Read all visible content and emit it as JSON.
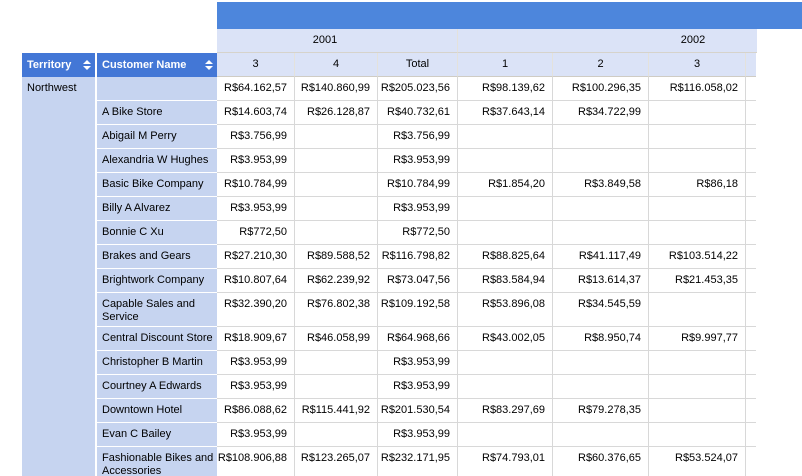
{
  "colors": {
    "banner_blue": "#4D86DC",
    "sort_header_blue": "#4377D6",
    "group_header_bg": "#DBE3F7",
    "row_header_bg": "#C6D4F0",
    "gridline": "#D8D8D8",
    "header_text": "#FFFFFF",
    "body_text": "#000000"
  },
  "column_headers": {
    "territory": "Territory",
    "customer": "Customer Name",
    "years": [
      {
        "label": "2001"
      },
      {
        "label": "2002"
      }
    ],
    "months": [
      "3",
      "4",
      "Total",
      "1",
      "2",
      "3"
    ]
  },
  "territory_value": "Northwest",
  "rows": [
    {
      "name": "",
      "values": [
        "R$64.162,57",
        "R$140.860,99",
        "R$205.023,56",
        "R$98.139,62",
        "R$100.296,35",
        "R$116.058,02"
      ]
    },
    {
      "name": "A Bike Store",
      "values": [
        "R$14.603,74",
        "R$26.128,87",
        "R$40.732,61",
        "R$37.643,14",
        "R$34.722,99",
        ""
      ]
    },
    {
      "name": "Abigail M Perry",
      "values": [
        "R$3.756,99",
        "",
        "R$3.756,99",
        "",
        "",
        ""
      ]
    },
    {
      "name": "Alexandria W Hughes",
      "values": [
        "R$3.953,99",
        "",
        "R$3.953,99",
        "",
        "",
        ""
      ]
    },
    {
      "name": "Basic Bike Company",
      "values": [
        "R$10.784,99",
        "",
        "R$10.784,99",
        "R$1.854,20",
        "R$3.849,58",
        "R$86,18"
      ]
    },
    {
      "name": "Billy A Alvarez",
      "values": [
        "R$3.953,99",
        "",
        "R$3.953,99",
        "",
        "",
        ""
      ]
    },
    {
      "name": "Bonnie C Xu",
      "values": [
        "R$772,50",
        "",
        "R$772,50",
        "",
        "",
        ""
      ]
    },
    {
      "name": "Brakes and Gears",
      "values": [
        "R$27.210,30",
        "R$89.588,52",
        "R$116.798,82",
        "R$88.825,64",
        "R$41.117,49",
        "R$103.514,22"
      ]
    },
    {
      "name": "Brightwork Company",
      "values": [
        "R$10.807,64",
        "R$62.239,92",
        "R$73.047,56",
        "R$83.584,94",
        "R$13.614,37",
        "R$21.453,35"
      ]
    },
    {
      "name": "Capable Sales and Service",
      "values": [
        "R$32.390,20",
        "R$76.802,38",
        "R$109.192,58",
        "R$53.896,08",
        "R$34.545,59",
        ""
      ]
    },
    {
      "name": "Central Discount Store",
      "values": [
        "R$18.909,67",
        "R$46.058,99",
        "R$64.968,66",
        "R$43.002,05",
        "R$8.950,74",
        "R$9.997,77"
      ]
    },
    {
      "name": "Christopher B Martin",
      "values": [
        "R$3.953,99",
        "",
        "R$3.953,99",
        "",
        "",
        ""
      ]
    },
    {
      "name": "Courtney A Edwards",
      "values": [
        "R$3.953,99",
        "",
        "R$3.953,99",
        "",
        "",
        ""
      ]
    },
    {
      "name": "Downtown Hotel",
      "values": [
        "R$86.088,62",
        "R$115.441,92",
        "R$201.530,54",
        "R$83.297,69",
        "R$79.278,35",
        ""
      ]
    },
    {
      "name": "Evan C Bailey",
      "values": [
        "R$3.953,99",
        "",
        "R$3.953,99",
        "",
        "",
        ""
      ]
    },
    {
      "name": "Fashionable Bikes and Accessories",
      "values": [
        "R$108.906,88",
        "R$123.265,07",
        "R$232.171,95",
        "R$74.793,01",
        "R$60.376,65",
        "R$53.524,07"
      ]
    }
  ]
}
